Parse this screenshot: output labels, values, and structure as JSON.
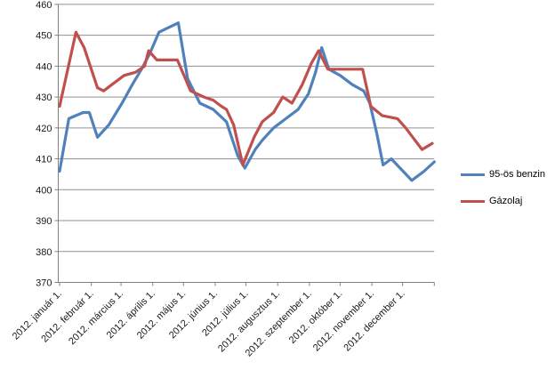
{
  "chart_data": {
    "type": "line",
    "title": "",
    "grid": true,
    "legend_position": "right",
    "y_axis": {
      "min": 370,
      "max": 460,
      "step": 10
    },
    "x_axis": {
      "labels": [
        "2012. január 1.",
        "2012. február 1.",
        "2012. március 1.",
        "2012. április 1.",
        "2012. május 1.",
        "2012. június 1.",
        "2012. július 1.",
        "2012. augusztus 1.",
        "2012. szeptember 1.",
        "2012. október 1.",
        "2012. november 1.",
        "2012. december 1."
      ],
      "month_day_offsets": [
        0,
        31,
        60,
        91,
        121,
        152,
        182,
        213,
        244,
        274,
        305,
        335
      ],
      "total_days": 366
    },
    "series": [
      {
        "name": "95-ös benzin",
        "color": "#4F81BD",
        "points": [
          [
            0,
            406
          ],
          [
            9,
            423
          ],
          [
            16,
            424
          ],
          [
            23,
            425
          ],
          [
            29,
            425
          ],
          [
            37,
            417
          ],
          [
            48,
            421
          ],
          [
            61,
            428
          ],
          [
            71,
            434
          ],
          [
            80,
            439
          ],
          [
            88,
            444
          ],
          [
            97,
            451
          ],
          [
            116,
            454
          ],
          [
            125,
            436
          ],
          [
            137,
            428
          ],
          [
            150,
            426
          ],
          [
            163,
            422
          ],
          [
            174,
            411
          ],
          [
            181,
            407
          ],
          [
            191,
            413
          ],
          [
            198,
            416
          ],
          [
            209,
            420
          ],
          [
            221,
            423
          ],
          [
            233,
            426
          ],
          [
            243,
            431
          ],
          [
            250,
            438
          ],
          [
            256,
            446
          ],
          [
            263,
            439
          ],
          [
            274,
            437
          ],
          [
            286,
            434
          ],
          [
            297,
            432
          ],
          [
            303,
            428
          ],
          [
            310,
            418
          ],
          [
            316,
            408
          ],
          [
            324,
            410
          ],
          [
            344,
            403
          ],
          [
            356,
            406
          ],
          [
            366,
            409
          ]
        ]
      },
      {
        "name": "Gázolaj",
        "color": "#C0504D",
        "points": [
          [
            0,
            427
          ],
          [
            16,
            451
          ],
          [
            24,
            446
          ],
          [
            37,
            433
          ],
          [
            43,
            432
          ],
          [
            51,
            434
          ],
          [
            63,
            437
          ],
          [
            74,
            438
          ],
          [
            83,
            440
          ],
          [
            87,
            445
          ],
          [
            95,
            442
          ],
          [
            115,
            442
          ],
          [
            128,
            432
          ],
          [
            141,
            430
          ],
          [
            150,
            429
          ],
          [
            158,
            427
          ],
          [
            163,
            426
          ],
          [
            170,
            421
          ],
          [
            179,
            408
          ],
          [
            190,
            417
          ],
          [
            198,
            422
          ],
          [
            209,
            425
          ],
          [
            218,
            430
          ],
          [
            227,
            428
          ],
          [
            237,
            434
          ],
          [
            246,
            441
          ],
          [
            253,
            445
          ],
          [
            262,
            439
          ],
          [
            296,
            439
          ],
          [
            304,
            427
          ],
          [
            315,
            424
          ],
          [
            330,
            423
          ],
          [
            338,
            420
          ],
          [
            354,
            413
          ],
          [
            364,
            415
          ]
        ]
      }
    ]
  },
  "colors": {
    "gridline": "#919191",
    "axis": "#808080",
    "tick_text": "#1a1a1a",
    "background": "#FFFFFF"
  }
}
